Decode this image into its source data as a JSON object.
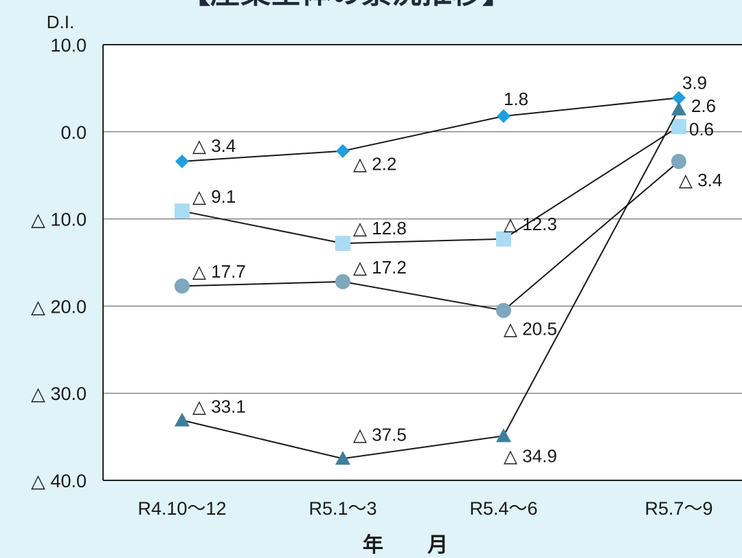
{
  "title": "【産業全体の景況推移】",
  "chart_data": {
    "type": "line",
    "ylabel": "D.I.",
    "xlabel": "年 月",
    "categories": [
      "R4.10～12",
      "R5.1～3",
      "R5.4～6",
      "R5.7～9"
    ],
    "ylim": [
      -40,
      10
    ],
    "yticks": [
      10,
      0,
      -10,
      -20,
      -30,
      -40
    ],
    "ytick_labels": [
      "10.0",
      "0.0",
      "△ 10.0",
      "△ 20.0",
      "△ 30.0",
      "△ 40.0"
    ],
    "grid": true,
    "series": [
      {
        "marker": "diamond",
        "color": "#1f9ee0",
        "values": [
          -3.4,
          -2.2,
          1.8,
          3.9
        ],
        "labels": [
          "△ 3.4",
          "△ 2.2",
          "1.8",
          "3.9"
        ]
      },
      {
        "marker": "square",
        "color": "#a9dcf2",
        "values": [
          -9.1,
          -12.8,
          -12.3,
          0.6
        ],
        "labels": [
          "△ 9.1",
          "△ 12.8",
          "△ 12.3",
          "0.6"
        ]
      },
      {
        "marker": "circle",
        "color": "#7fa7bd",
        "values": [
          -17.7,
          -17.2,
          -20.5,
          -3.4
        ],
        "labels": [
          "△ 17.7",
          "△ 17.2",
          "△ 20.5",
          "△ 3.4"
        ]
      },
      {
        "marker": "triangle",
        "color": "#3d7f99",
        "values": [
          -33.1,
          -37.5,
          -34.9,
          2.6
        ],
        "labels": [
          "△ 33.1",
          "△ 37.5",
          "△ 34.9",
          "2.6"
        ]
      }
    ]
  }
}
